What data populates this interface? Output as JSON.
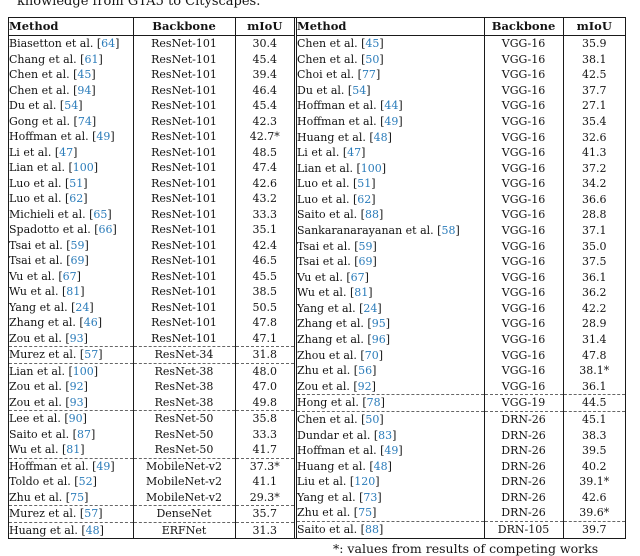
{
  "caption_top": "knowledge from GTA5 to Cityscapes.",
  "footnote": "*: values from results of competing works",
  "accent_color": "#2b7cba",
  "tables": [
    {
      "headers": {
        "method": "Method",
        "backbone": "Backbone",
        "miou": "mIoU"
      },
      "groups": [
        {
          "rows": [
            {
              "method": "Biasetton et al.",
              "cite": "64",
              "backbone": "ResNet-101",
              "miou": "30.4"
            },
            {
              "method": "Chang et al.",
              "cite": "61",
              "backbone": "ResNet-101",
              "miou": "45.4"
            },
            {
              "method": "Chen et al.",
              "cite": "45",
              "backbone": "ResNet-101",
              "miou": "39.4"
            },
            {
              "method": "Chen et al.",
              "cite": "94",
              "backbone": "ResNet-101",
              "miou": "46.4"
            },
            {
              "method": "Du et al.",
              "cite": "54",
              "backbone": "ResNet-101",
              "miou": "45.4"
            },
            {
              "method": "Gong et al.",
              "cite": "74",
              "backbone": "ResNet-101",
              "miou": "42.3"
            },
            {
              "method": "Hoffman et al.",
              "cite": "49",
              "backbone": "ResNet-101",
              "miou": "42.7*"
            },
            {
              "method": "Li et al.",
              "cite": "47",
              "backbone": "ResNet-101",
              "miou": "48.5"
            },
            {
              "method": "Lian et al.",
              "cite": "100",
              "backbone": "ResNet-101",
              "miou": "47.4"
            },
            {
              "method": "Luo et al.",
              "cite": "51",
              "backbone": "ResNet-101",
              "miou": "42.6"
            },
            {
              "method": "Luo et al.",
              "cite": "62",
              "backbone": "ResNet-101",
              "miou": "43.2"
            },
            {
              "method": "Michieli et al.",
              "cite": "65",
              "backbone": "ResNet-101",
              "miou": "33.3"
            },
            {
              "method": "Spadotto et al.",
              "cite": "66",
              "backbone": "ResNet-101",
              "miou": "35.1"
            },
            {
              "method": "Tsai et al.",
              "cite": "59",
              "backbone": "ResNet-101",
              "miou": "42.4"
            },
            {
              "method": "Tsai et al.",
              "cite": "69",
              "backbone": "ResNet-101",
              "miou": "46.5"
            },
            {
              "method": "Vu et al.",
              "cite": "67",
              "backbone": "ResNet-101",
              "miou": "45.5"
            },
            {
              "method": "Wu et al.",
              "cite": "81",
              "backbone": "ResNet-101",
              "miou": "38.5"
            },
            {
              "method": "Yang et al.",
              "cite": "24",
              "backbone": "ResNet-101",
              "miou": "50.5"
            },
            {
              "method": "Zhang et al.",
              "cite": "46",
              "backbone": "ResNet-101",
              "miou": "47.8"
            },
            {
              "method": "Zou et al.",
              "cite": "93",
              "backbone": "ResNet-101",
              "miou": "47.1"
            }
          ]
        },
        {
          "rows": [
            {
              "method": "Murez et al.",
              "cite": "57",
              "backbone": "ResNet-34",
              "miou": "31.8"
            }
          ]
        },
        {
          "rows": [
            {
              "method": "Lian et al.",
              "cite": "100",
              "backbone": "ResNet-38",
              "miou": "48.0"
            },
            {
              "method": "Zou et al.",
              "cite": "92",
              "backbone": "ResNet-38",
              "miou": "47.0"
            },
            {
              "method": "Zou et al.",
              "cite": "93",
              "backbone": "ResNet-38",
              "miou": "49.8"
            }
          ]
        },
        {
          "rows": [
            {
              "method": "Lee et al.",
              "cite": "90",
              "backbone": "ResNet-50",
              "miou": "35.8"
            },
            {
              "method": "Saito et al.",
              "cite": "87",
              "backbone": "ResNet-50",
              "miou": "33.3"
            },
            {
              "method": "Wu et al.",
              "cite": "81",
              "backbone": "ResNet-50",
              "miou": "41.7"
            }
          ]
        },
        {
          "rows": [
            {
              "method": "Hoffman et al.",
              "cite": "49",
              "backbone": "MobileNet-v2",
              "miou": "37.3*"
            },
            {
              "method": "Toldo et al.",
              "cite": "52",
              "backbone": "MobileNet-v2",
              "miou": "41.1"
            },
            {
              "method": "Zhu et al.",
              "cite": "75",
              "backbone": "MobileNet-v2",
              "miou": "29.3*"
            }
          ]
        },
        {
          "rows": [
            {
              "method": "Murez et al.",
              "cite": "57",
              "backbone": "DenseNet",
              "miou": "35.7"
            }
          ]
        },
        {
          "rows": [
            {
              "method": "Huang et al.",
              "cite": "48",
              "backbone": "ERFNet",
              "miou": "31.3"
            }
          ]
        }
      ]
    },
    {
      "headers": {
        "method": "Method",
        "backbone": "Backbone",
        "miou": "mIoU"
      },
      "groups": [
        {
          "rows": [
            {
              "method": "Chen et al.",
              "cite": "45",
              "backbone": "VGG-16",
              "miou": "35.9"
            },
            {
              "method": "Chen et al.",
              "cite": "50",
              "backbone": "VGG-16",
              "miou": "38.1"
            },
            {
              "method": "Choi et al.",
              "cite": "77",
              "backbone": "VGG-16",
              "miou": "42.5"
            },
            {
              "method": "Du et al.",
              "cite": "54",
              "backbone": "VGG-16",
              "miou": "37.7"
            },
            {
              "method": "Hoffman et al.",
              "cite": "44",
              "backbone": "VGG-16",
              "miou": "27.1"
            },
            {
              "method": "Hoffman et al.",
              "cite": "49",
              "backbone": "VGG-16",
              "miou": "35.4"
            },
            {
              "method": "Huang et al.",
              "cite": "48",
              "backbone": "VGG-16",
              "miou": "32.6"
            },
            {
              "method": "Li et al.",
              "cite": "47",
              "backbone": "VGG-16",
              "miou": "41.3"
            },
            {
              "method": "Lian et al.",
              "cite": "100",
              "backbone": "VGG-16",
              "miou": "37.2"
            },
            {
              "method": "Luo et al.",
              "cite": "51",
              "backbone": "VGG-16",
              "miou": "34.2"
            },
            {
              "method": "Luo et al.",
              "cite": "62",
              "backbone": "VGG-16",
              "miou": "36.6"
            },
            {
              "method": "Saito et al.",
              "cite": "88",
              "backbone": "VGG-16",
              "miou": "28.8"
            },
            {
              "method": "Sankaranarayanan et al.",
              "cite": "58",
              "backbone": "VGG-16",
              "miou": "37.1"
            },
            {
              "method": "Tsai et al.",
              "cite": "59",
              "backbone": "VGG-16",
              "miou": "35.0"
            },
            {
              "method": "Tsai et al.",
              "cite": "69",
              "backbone": "VGG-16",
              "miou": "37.5"
            },
            {
              "method": "Vu et al.",
              "cite": "67",
              "backbone": "VGG-16",
              "miou": "36.1"
            },
            {
              "method": "Wu et al.",
              "cite": "81",
              "backbone": "VGG-16",
              "miou": "36.2"
            },
            {
              "method": "Yang et al.",
              "cite": "24",
              "backbone": "VGG-16",
              "miou": "42.2"
            },
            {
              "method": "Zhang et al.",
              "cite": "95",
              "backbone": "VGG-16",
              "miou": "28.9"
            },
            {
              "method": "Zhang et al.",
              "cite": "96",
              "backbone": "VGG-16",
              "miou": "31.4"
            },
            {
              "method": "Zhou et al.",
              "cite": "70",
              "backbone": "VGG-16",
              "miou": "47.8"
            },
            {
              "method": "Zhu et al.",
              "cite": "56",
              "backbone": "VGG-16",
              "miou": "38.1*"
            },
            {
              "method": "Zou et al.",
              "cite": "92",
              "backbone": "VGG-16",
              "miou": "36.1"
            }
          ]
        },
        {
          "rows": [
            {
              "method": "Hong et al.",
              "cite": "78",
              "backbone": "VGG-19",
              "miou": "44.5"
            }
          ]
        },
        {
          "rows": [
            {
              "method": "Chen et al.",
              "cite": "50",
              "backbone": "DRN-26",
              "miou": "45.1"
            },
            {
              "method": "Dundar et al.",
              "cite": "83",
              "backbone": "DRN-26",
              "miou": "38.3"
            },
            {
              "method": "Hoffman et al.",
              "cite": "49",
              "backbone": "DRN-26",
              "miou": "39.5"
            },
            {
              "method": "Huang et al.",
              "cite": "48",
              "backbone": "DRN-26",
              "miou": "40.2"
            },
            {
              "method": "Liu et al.",
              "cite": "120",
              "backbone": "DRN-26",
              "miou": "39.1*"
            },
            {
              "method": "Yang et al.",
              "cite": "73",
              "backbone": "DRN-26",
              "miou": "42.6"
            },
            {
              "method": "Zhu et al.",
              "cite": "75",
              "backbone": "DRN-26",
              "miou": "39.6*"
            }
          ]
        },
        {
          "rows": [
            {
              "method": "Saito et al.",
              "cite": "88",
              "backbone": "DRN-105",
              "miou": "39.7"
            }
          ]
        }
      ]
    }
  ]
}
